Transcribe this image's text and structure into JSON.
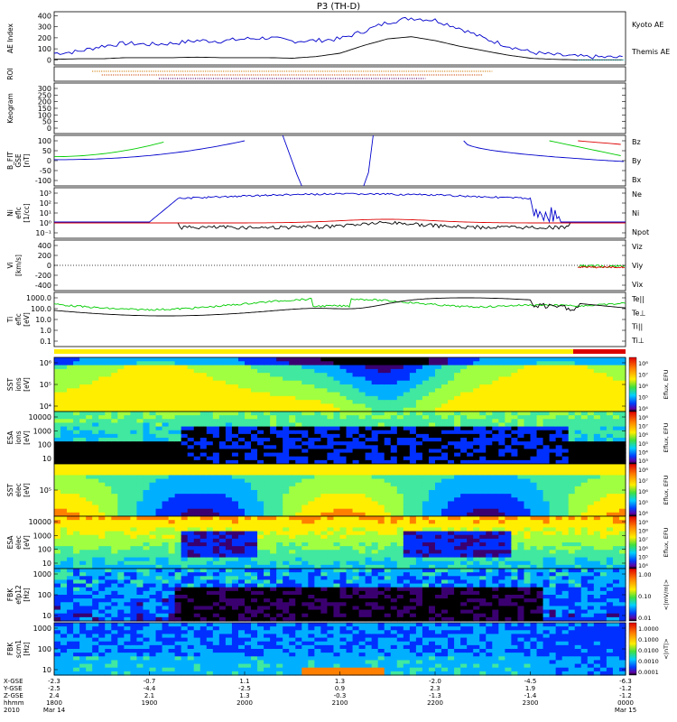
{
  "title": "P3 (TH-D)",
  "colors": {
    "blue": "#0000cc",
    "red": "#dd0000",
    "green": "#00cc00",
    "black": "#000000"
  },
  "chart_data": [
    {
      "type": "line",
      "panel": "ae",
      "ylabel": "AE Index",
      "yticks": [
        "400",
        "300",
        "200",
        "100",
        "0"
      ],
      "ylim": [
        -30,
        420
      ],
      "legend": [
        {
          "name": "Kyoto AE",
          "color": "#0000cc"
        },
        {
          "name": "Themis AE",
          "color": "#000000"
        }
      ],
      "x_hours": [
        18.0,
        18.25,
        18.5,
        18.75,
        19.0,
        19.25,
        19.5,
        19.75,
        20.0,
        20.25,
        20.5,
        20.75,
        21.0,
        21.25,
        21.5,
        21.75,
        22.0,
        22.25,
        22.5,
        22.75,
        23.0,
        23.25,
        23.5,
        23.75,
        24.0
      ],
      "series": [
        {
          "name": "Kyoto AE",
          "values": [
            60,
            75,
            125,
            150,
            140,
            150,
            175,
            170,
            190,
            200,
            170,
            175,
            190,
            260,
            340,
            380,
            360,
            290,
            200,
            130,
            70,
            45,
            30,
            25,
            20
          ]
        },
        {
          "name": "Themis AE",
          "values": [
            5,
            10,
            10,
            20,
            20,
            20,
            25,
            20,
            20,
            20,
            15,
            30,
            60,
            130,
            190,
            210,
            175,
            125,
            85,
            45,
            15,
            5,
            0,
            0,
            0
          ]
        }
      ]
    },
    {
      "type": "line",
      "panel": "roi",
      "ylabel": "ROI"
    },
    {
      "type": "line",
      "panel": "keogram",
      "ylabel": "Keogram",
      "yticks": [
        "300",
        "250",
        "200",
        "150",
        "100",
        "50",
        "0"
      ],
      "ylim": [
        0,
        300
      ]
    },
    {
      "type": "line",
      "panel": "bfield",
      "ylabel": [
        "B_FIT",
        "GSE",
        "[nT]"
      ],
      "yticks": [
        "100",
        "50",
        "0",
        "-50",
        "-100"
      ],
      "ylim": [
        -100,
        100
      ],
      "legend": [
        {
          "name": "Bz",
          "color": "#dd0000"
        },
        {
          "name": "By",
          "color": "#00cc00"
        },
        {
          "name": "Bx",
          "color": "#0000cc"
        }
      ]
    },
    {
      "type": "line",
      "panel": "density",
      "ylabel": [
        "Ni",
        "eflc",
        "[1/cc]"
      ],
      "yticks": [
        "10³",
        "10²",
        "10¹",
        "10⁰",
        "10⁻¹"
      ],
      "legend": [
        {
          "name": "Ne",
          "color": "#dd0000"
        },
        {
          "name": "Ni",
          "color": "#000000"
        },
        {
          "name": "Npot",
          "color": "#0000cc"
        }
      ]
    },
    {
      "type": "line",
      "panel": "velocity",
      "ylabel": [
        "Vi",
        "[km/s]"
      ],
      "yticks": [
        "400",
        "200",
        "0",
        "-200",
        "-400"
      ],
      "ylim": [
        -500,
        500
      ],
      "legend": [
        {
          "name": "Viz",
          "color": "#dd0000"
        },
        {
          "name": "Viy",
          "color": "#00cc00"
        },
        {
          "name": "Vix",
          "color": "#0000cc"
        }
      ]
    },
    {
      "type": "line",
      "panel": "temperature",
      "ylabel": [
        "Ti",
        "eflc",
        "[eV]"
      ],
      "yticks": [
        "1000.0",
        "100.0",
        "10.0",
        "1.0",
        "0.1"
      ],
      "legend": [
        {
          "name": "Te||",
          "color": "#000000"
        },
        {
          "name": "Te⊥",
          "color": "#dd0000"
        },
        {
          "name": "Ti||",
          "color": "#00cc00"
        },
        {
          "name": "Ti⊥",
          "color": "#0000cc"
        }
      ]
    },
    {
      "type": "heatmap",
      "panel": "sst-ion",
      "ylabel": [
        "SST",
        "ions",
        "[eV]"
      ],
      "yticks": [
        "10⁶",
        "10⁵",
        "10⁴"
      ],
      "cbar": [
        "10⁸",
        "10⁷",
        "10⁶",
        "10⁵",
        "10⁴"
      ],
      "cbar_label": "Eflux, EFU"
    },
    {
      "type": "heatmap",
      "panel": "esa-ion",
      "ylabel": [
        "ESA",
        "ions",
        "[eV]"
      ],
      "yticks": [
        "10000",
        "1000",
        "100",
        "10"
      ],
      "cbar": [
        "10⁸",
        "10⁷",
        "10⁶",
        "10⁵",
        "10⁴",
        "10³"
      ],
      "cbar_label": "Eflux, EFU"
    },
    {
      "type": "heatmap",
      "panel": "sst-elec",
      "ylabel": [
        "SST",
        "elec",
        "[eV]"
      ],
      "yticks": [
        "10⁵"
      ],
      "cbar": [
        "10⁸",
        "10⁷",
        "10⁶",
        "10⁵",
        "10⁴"
      ],
      "cbar_label": "Eflux, EFU"
    },
    {
      "type": "heatmap",
      "panel": "esa-elec",
      "ylabel": [
        "ESA",
        "elec",
        "[eV]"
      ],
      "yticks": [
        "10000",
        "1000",
        "100",
        "10"
      ],
      "cbar": [
        "10⁹",
        "10⁸",
        "10⁷",
        "10⁶",
        "10⁵",
        "10⁴"
      ],
      "cbar_label": "Eflux, EFU"
    },
    {
      "type": "heatmap",
      "panel": "fbk-e",
      "ylabel": [
        "FBK",
        "efp12",
        "[Hz]"
      ],
      "yticks": [
        "1000",
        "100",
        "10"
      ],
      "cbar": [
        "1.00",
        "0.10",
        "0.01"
      ],
      "cbar_label": "<|mV/m|>"
    },
    {
      "type": "heatmap",
      "panel": "fbk-b",
      "ylabel": [
        "FBK",
        "scm1",
        "[Hz]"
      ],
      "yticks": [
        "1000",
        "100",
        "10"
      ],
      "cbar": [
        "1.0000",
        "0.1000",
        "0.0100",
        "0.0010",
        "0.0001"
      ],
      "cbar_label": "<|nT|>"
    }
  ],
  "x_axis": {
    "row_labels": [
      "X-GSE",
      "Y-GSE",
      "Z-GSE",
      "hhmm",
      "2010"
    ],
    "ticks": [
      {
        "vals": [
          "-2.3",
          "-2.5",
          "2.4",
          "1800",
          "Mar 14"
        ]
      },
      {
        "vals": [
          "-0.7",
          "-4.4",
          "2.1",
          "1900",
          ""
        ]
      },
      {
        "vals": [
          "1.1",
          "-2.5",
          "1.3",
          "2000",
          ""
        ]
      },
      {
        "vals": [
          "1.3",
          "0.9",
          "-0.3",
          "2100",
          ""
        ]
      },
      {
        "vals": [
          "-2.0",
          "2.3",
          "-1.3",
          "2200",
          ""
        ]
      },
      {
        "vals": [
          "-4.5",
          "1.9",
          "-1.4",
          "2300",
          ""
        ]
      },
      {
        "vals": [
          "-6.3",
          "-1.2",
          "-1.2",
          "0000",
          "Mar 15"
        ]
      }
    ]
  }
}
